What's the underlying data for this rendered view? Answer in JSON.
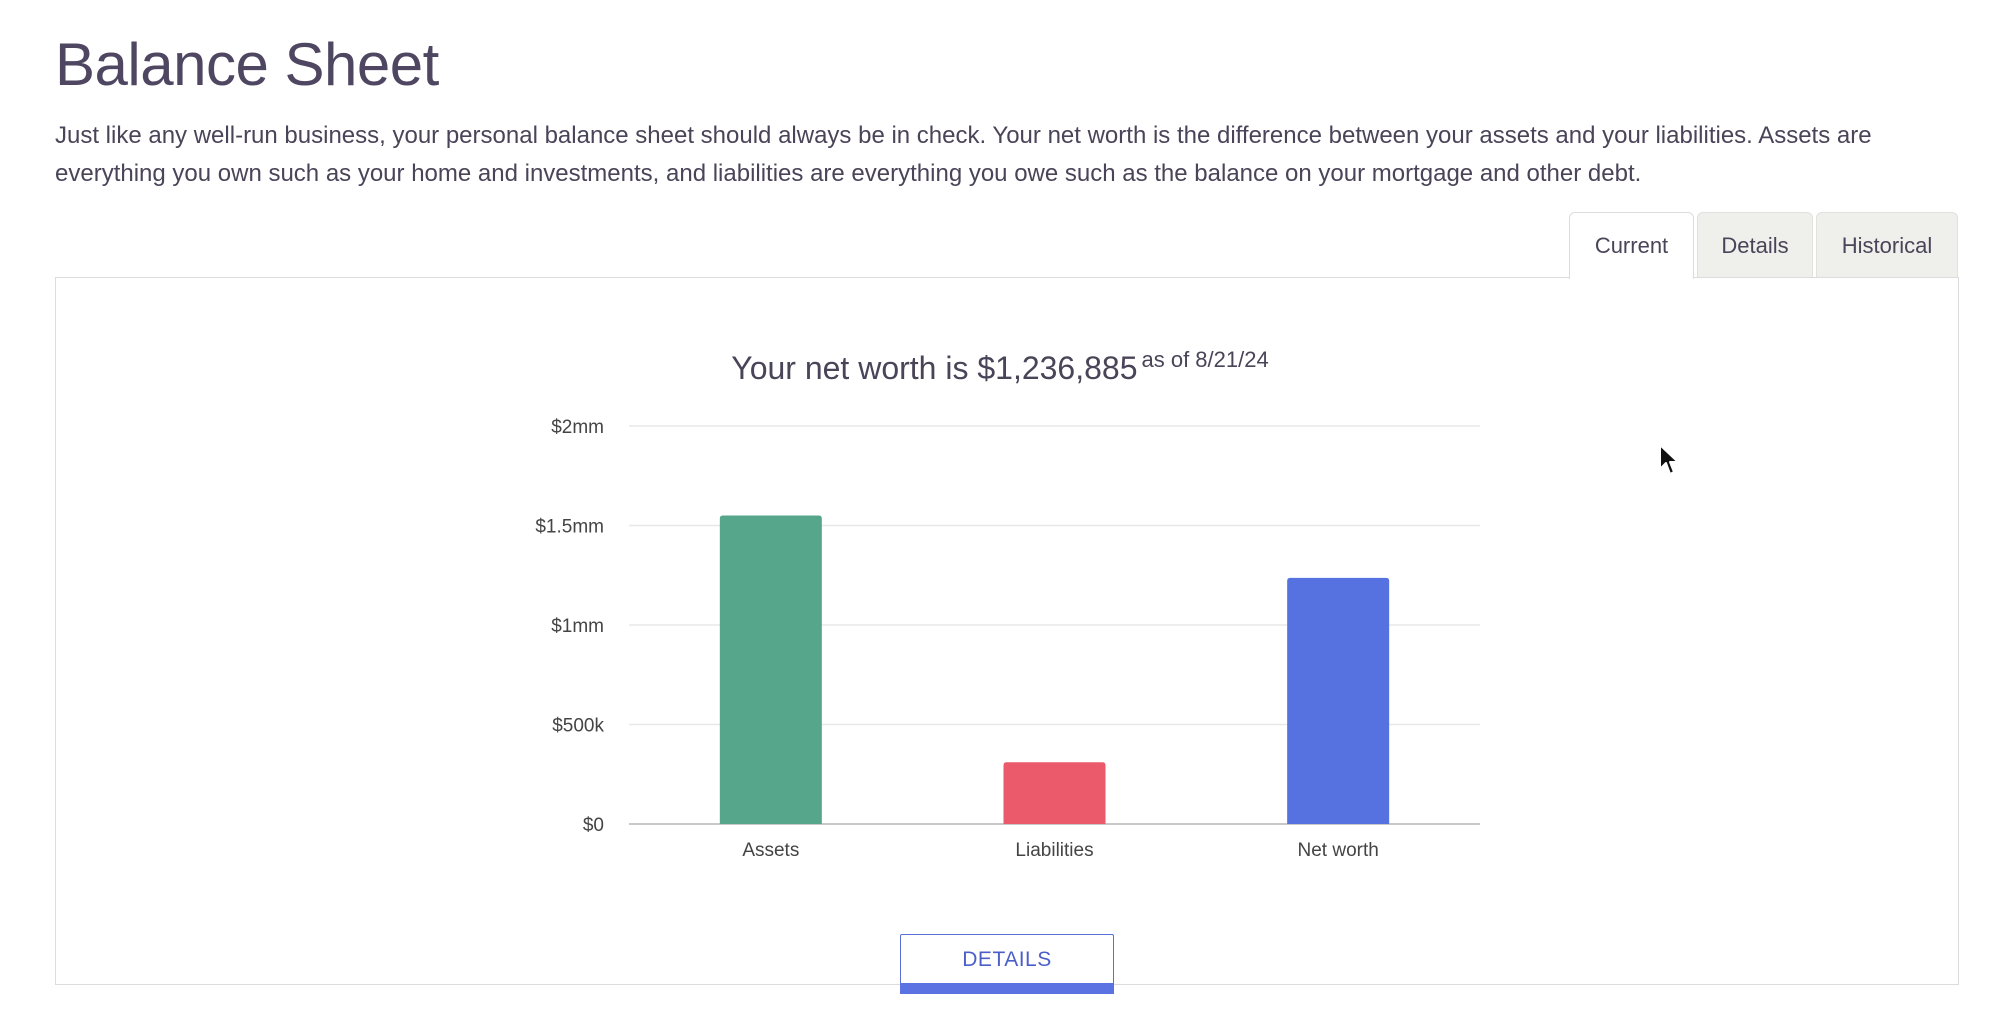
{
  "page": {
    "title": "Balance Sheet",
    "intro": "Just like any well-run business, your personal balance sheet should always be in check. Your net worth is the difference between your assets and your liabilities. Assets are everything you own such as your home and investments, and liabilities are everything you owe such as the balance on your mortgage and other debt."
  },
  "tabs": {
    "current": "Current",
    "details": "Details",
    "historical": "Historical"
  },
  "summary": {
    "headline": "Your net worth is $1,236,885",
    "as_of": "as of 8/21/24"
  },
  "details_button": "DETAILS",
  "chart_data": {
    "type": "bar",
    "title": "",
    "xlabel": "",
    "ylabel": "",
    "categories": [
      "Assets",
      "Liabilities",
      "Net worth"
    ],
    "values": [
      1550000,
      310000,
      1236885
    ],
    "colors": [
      "#55a68b",
      "#ea5a6a",
      "#5671e0"
    ],
    "ylim": [
      0,
      2000000
    ],
    "yticks": [
      0,
      500000,
      1000000,
      1500000,
      2000000
    ],
    "ytick_labels": [
      "$0",
      "$500k",
      "$1mm",
      "$1.5mm",
      "$2mm"
    ],
    "grid": true,
    "legend": "none"
  },
  "icons": {
    "cursor": "mouse-pointer-icon"
  }
}
